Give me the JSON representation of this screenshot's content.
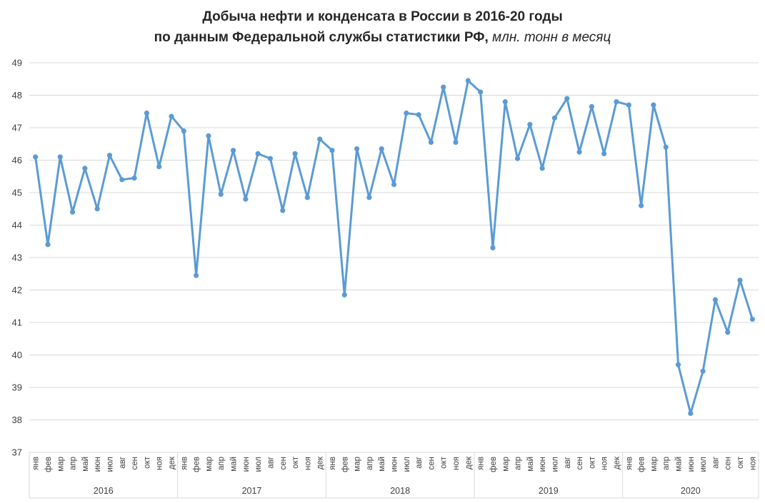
{
  "title": {
    "line1": "Добыча нефти и конденсата в России в 2016-20 годы",
    "line2_bold": "по данным Федеральной службы статистики РФ,",
    "line2_italic": " млн. тонн в месяц"
  },
  "chart_data": {
    "type": "line",
    "title": "Добыча нефти и конденсата в России в 2016-20 годы по данным Федеральной службы статистики РФ, млн. тонн в месяц",
    "xlabel": "",
    "ylabel": "млн. тонн в месяц",
    "ylim": [
      37,
      49
    ],
    "ytick_step": 1,
    "grid": true,
    "legend": "none",
    "line_color": "#5B9BD5",
    "gridline_color": "#D9D9D9",
    "axis_text_color": "#404040",
    "title_color": "#262626",
    "years": [
      {
        "label": "2016",
        "months": [
          "янв",
          "фев",
          "мар",
          "апр",
          "май",
          "июн",
          "июл",
          "авг",
          "сен",
          "окт",
          "ноя",
          "дек"
        ],
        "values": [
          46.1,
          43.4,
          46.1,
          44.4,
          45.75,
          44.5,
          46.15,
          45.4,
          45.45,
          47.45,
          45.8,
          47.35
        ]
      },
      {
        "label": "2017",
        "months": [
          "янв",
          "фев",
          "мар",
          "апр",
          "май",
          "июн",
          "июл",
          "авг",
          "сен",
          "окт",
          "ноя",
          "дек"
        ],
        "values": [
          46.9,
          42.45,
          46.75,
          44.95,
          46.3,
          44.8,
          46.2,
          46.05,
          44.45,
          46.2,
          44.85,
          46.65
        ]
      },
      {
        "label": "2018",
        "months": [
          "янв",
          "фев",
          "мар",
          "апр",
          "май",
          "июн",
          "июл",
          "авг",
          "сен",
          "окт",
          "ноя",
          "дек"
        ],
        "values": [
          46.3,
          41.85,
          46.35,
          44.85,
          46.35,
          45.25,
          47.45,
          47.4,
          46.55,
          48.25,
          46.55,
          48.45
        ]
      },
      {
        "label": "2019",
        "months": [
          "янв",
          "фев",
          "мар",
          "апр",
          "май",
          "июн",
          "июл",
          "авг",
          "сен",
          "окт",
          "ноя",
          "дек"
        ],
        "values": [
          48.1,
          43.3,
          47.8,
          46.05,
          47.1,
          45.75,
          47.3,
          47.9,
          46.25,
          47.65,
          46.2,
          47.8
        ]
      },
      {
        "label": "2020",
        "months": [
          "янв",
          "фев",
          "мар",
          "апр",
          "май",
          "июн",
          "июл",
          "авг",
          "сен",
          "окт",
          "ноя"
        ],
        "values": [
          47.7,
          44.6,
          47.7,
          46.4,
          39.7,
          38.2,
          39.5,
          41.7,
          40.7,
          42.3,
          41.1
        ]
      }
    ]
  }
}
